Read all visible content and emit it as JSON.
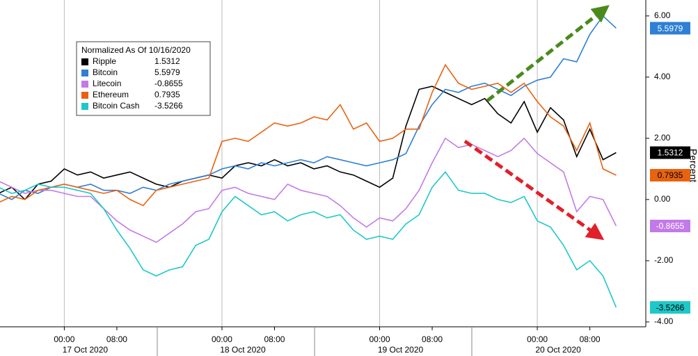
{
  "chart_data": {
    "type": "line",
    "legend_title": "Normalized As Of 10/16/2020",
    "y_label": "Percent",
    "categories": [
      null,
      null,
      null,
      null,
      null,
      "00:00",
      null,
      null,
      null,
      "08:00",
      null,
      null,
      null,
      null,
      null,
      null,
      null,
      "00:00",
      null,
      null,
      null,
      "08:00",
      null,
      null,
      null,
      null,
      null,
      null,
      null,
      "00:00",
      null,
      null,
      null,
      "08:00",
      null,
      null,
      null,
      null,
      null,
      null,
      null,
      "00:00",
      null,
      null,
      null,
      "08:00",
      null,
      null
    ],
    "date_categories": [
      null,
      null,
      null,
      null,
      null,
      "17 Oct 2020",
      null,
      null,
      null,
      null,
      null,
      null,
      null,
      null,
      null,
      null,
      null,
      "18 Oct 2020",
      null,
      null,
      null,
      null,
      null,
      null,
      null,
      null,
      null,
      null,
      null,
      "19 Oct 2020",
      null,
      null,
      null,
      null,
      null,
      null,
      null,
      null,
      null,
      null,
      null,
      "20 Oct 2020",
      null,
      null,
      null,
      null,
      null,
      null
    ],
    "series": [
      {
        "name": "Ripple",
        "color": "#000000",
        "values": [
          0.2,
          0.4,
          0.0,
          0.5,
          0.6,
          1.0,
          0.8,
          0.9,
          0.7,
          0.8,
          0.9,
          0.7,
          0.5,
          0.4,
          0.6,
          0.7,
          0.8,
          0.7,
          1.1,
          1.2,
          1.1,
          1.3,
          1.1,
          1.2,
          1.0,
          1.1,
          0.9,
          0.8,
          0.6,
          0.4,
          0.7,
          2.4,
          3.6,
          3.7,
          3.5,
          3.3,
          3.1,
          3.3,
          2.8,
          2.5,
          3.2,
          2.2,
          3.0,
          2.6,
          1.4,
          2.3,
          1.3,
          1.5312
        ]
      },
      {
        "name": "Bitcoin",
        "color": "#2e7fd6",
        "values": [
          0.2,
          0.0,
          0.3,
          0.2,
          0.4,
          0.5,
          0.4,
          0.5,
          0.3,
          0.3,
          0.2,
          0.4,
          0.3,
          0.5,
          0.6,
          0.7,
          0.8,
          1.0,
          1.1,
          1.0,
          1.2,
          1.1,
          1.2,
          1.3,
          1.2,
          1.4,
          1.3,
          1.2,
          1.1,
          1.2,
          1.3,
          1.5,
          2.4,
          3.1,
          3.6,
          3.5,
          3.7,
          3.8,
          3.6,
          3.4,
          3.7,
          3.9,
          4.0,
          4.6,
          4.5,
          5.4,
          6.0,
          5.5979
        ]
      },
      {
        "name": "Litecoin",
        "color": "#c27ae8",
        "values": [
          0.6,
          0.4,
          0.2,
          0.3,
          0.3,
          0.2,
          0.1,
          0.1,
          -0.3,
          -0.7,
          -1.0,
          -1.2,
          -1.4,
          -1.1,
          -0.8,
          -0.4,
          -0.3,
          0.3,
          0.4,
          0.2,
          0.1,
          0.0,
          0.5,
          0.3,
          0.2,
          0.1,
          -0.2,
          -0.6,
          -0.9,
          -0.6,
          -0.7,
          -0.3,
          0.3,
          1.2,
          2.0,
          1.7,
          1.8,
          1.6,
          1.4,
          1.6,
          2.0,
          1.5,
          1.2,
          0.9,
          -0.4,
          0.1,
          0.0,
          -0.8655
        ]
      },
      {
        "name": "Ethereum",
        "color": "#e8620f",
        "values": [
          -0.1,
          0.1,
          0.0,
          0.3,
          0.4,
          0.5,
          0.4,
          0.3,
          0.2,
          0.3,
          0.0,
          -0.2,
          0.3,
          0.4,
          0.5,
          0.6,
          0.7,
          1.9,
          2.0,
          1.9,
          2.2,
          2.5,
          2.4,
          2.5,
          2.7,
          2.6,
          3.1,
          2.3,
          2.5,
          1.9,
          2.0,
          2.3,
          2.3,
          3.5,
          4.4,
          3.8,
          3.6,
          3.7,
          3.8,
          3.5,
          3.8,
          3.2,
          2.7,
          2.4,
          1.6,
          2.5,
          1.0,
          0.7935
        ]
      },
      {
        "name": "Bitcoin Cash",
        "color": "#1ec8c8",
        "values": [
          0.4,
          0.2,
          0.3,
          0.5,
          0.4,
          0.4,
          0.3,
          0.2,
          -0.3,
          -1.0,
          -1.6,
          -2.3,
          -2.5,
          -2.3,
          -2.2,
          -1.5,
          -1.3,
          -0.4,
          0.1,
          -0.2,
          -0.5,
          -0.4,
          -0.7,
          -0.5,
          -0.4,
          -0.6,
          -0.5,
          -1.0,
          -1.3,
          -1.2,
          -1.3,
          -0.8,
          -0.5,
          0.4,
          0.9,
          0.3,
          0.2,
          0.2,
          0.0,
          -0.1,
          0.1,
          -0.7,
          -0.9,
          -1.5,
          -2.3,
          -2.0,
          -2.5,
          -3.5266
        ]
      }
    ],
    "ylim": [
      -4.16,
      6.52
    ],
    "yticks": [
      {
        "value": 6,
        "label": "6.00"
      },
      {
        "value": 4,
        "label": "4.00"
      },
      {
        "value": 2,
        "label": "2.00"
      },
      {
        "value": 0,
        "label": "0.00"
      },
      {
        "value": -2,
        "label": "-2.00"
      },
      {
        "value": -4,
        "label": "-4.00"
      }
    ],
    "grid": true
  }
}
